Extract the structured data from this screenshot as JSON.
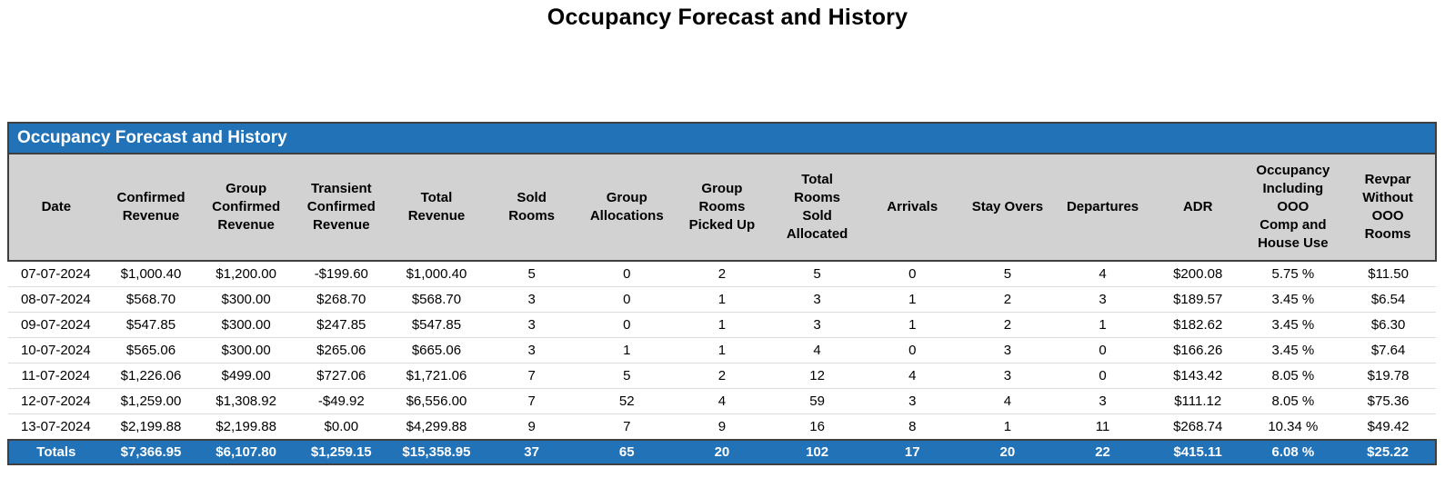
{
  "page": {
    "title": "Occupancy Forecast and History"
  },
  "table": {
    "title": "Occupancy Forecast and History",
    "colors": {
      "header_bar": "#2272b8",
      "header_bg": "#d2d2d2",
      "totals_bg": "#2272b8",
      "border": "#3f3f3f",
      "row_separator": "#dcdcdc"
    },
    "columns": [
      {
        "label": "Date"
      },
      {
        "label": "Confirmed\nRevenue"
      },
      {
        "label": "Group\nConfirmed\nRevenue"
      },
      {
        "label": "Transient\nConfirmed\nRevenue"
      },
      {
        "label": "Total\nRevenue"
      },
      {
        "label": "Sold\nRooms"
      },
      {
        "label": "Group\nAllocations"
      },
      {
        "label": "Group\nRooms\nPicked Up"
      },
      {
        "label": "Total\nRooms\nSold\nAllocated"
      },
      {
        "label": "Arrivals"
      },
      {
        "label": "Stay Overs"
      },
      {
        "label": "Departures"
      },
      {
        "label": "ADR"
      },
      {
        "label": "Occupancy\nIncluding\nOOO\nComp and\nHouse Use"
      },
      {
        "label": "Revpar\nWithout\nOOO\nRooms"
      }
    ],
    "rows": [
      {
        "cells": [
          "07-07-2024",
          "$1,000.40",
          "$1,200.00",
          "-$199.60",
          "$1,000.40",
          "5",
          "0",
          "2",
          "5",
          "0",
          "5",
          "4",
          "$200.08",
          "5.75 %",
          "$11.50"
        ]
      },
      {
        "cells": [
          "08-07-2024",
          "$568.70",
          "$300.00",
          "$268.70",
          "$568.70",
          "3",
          "0",
          "1",
          "3",
          "1",
          "2",
          "3",
          "$189.57",
          "3.45 %",
          "$6.54"
        ]
      },
      {
        "cells": [
          "09-07-2024",
          "$547.85",
          "$300.00",
          "$247.85",
          "$547.85",
          "3",
          "0",
          "1",
          "3",
          "1",
          "2",
          "1",
          "$182.62",
          "3.45 %",
          "$6.30"
        ]
      },
      {
        "cells": [
          "10-07-2024",
          "$565.06",
          "$300.00",
          "$265.06",
          "$665.06",
          "3",
          "1",
          "1",
          "4",
          "0",
          "3",
          "0",
          "$166.26",
          "3.45 %",
          "$7.64"
        ]
      },
      {
        "cells": [
          "11-07-2024",
          "$1,226.06",
          "$499.00",
          "$727.06",
          "$1,721.06",
          "7",
          "5",
          "2",
          "12",
          "4",
          "3",
          "0",
          "$143.42",
          "8.05 %",
          "$19.78"
        ]
      },
      {
        "cells": [
          "12-07-2024",
          "$1,259.00",
          "$1,308.92",
          "-$49.92",
          "$6,556.00",
          "7",
          "52",
          "4",
          "59",
          "3",
          "4",
          "3",
          "$111.12",
          "8.05 %",
          "$75.36"
        ]
      },
      {
        "cells": [
          "13-07-2024",
          "$2,199.88",
          "$2,199.88",
          "$0.00",
          "$4,299.88",
          "9",
          "7",
          "9",
          "16",
          "8",
          "1",
          "11",
          "$268.74",
          "10.34 %",
          "$49.42"
        ]
      }
    ],
    "totals": {
      "cells": [
        "Totals",
        "$7,366.95",
        "$6,107.80",
        "$1,259.15",
        "$15,358.95",
        "37",
        "65",
        "20",
        "102",
        "17",
        "20",
        "22",
        "$415.11",
        "6.08 %",
        "$25.22"
      ]
    }
  }
}
